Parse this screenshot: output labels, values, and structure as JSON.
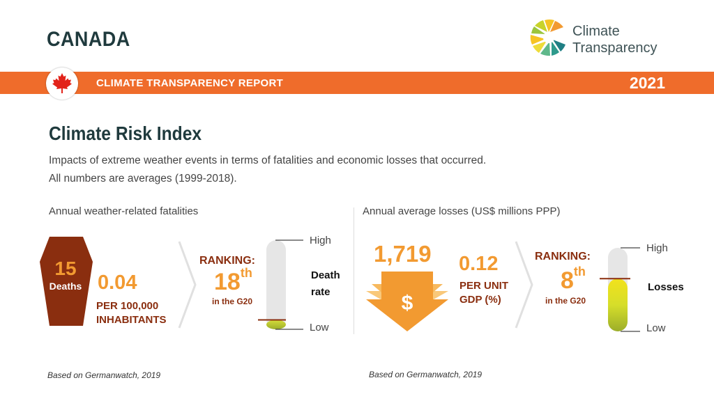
{
  "header": {
    "country": "CANADA",
    "logo_text_line1": "Climate",
    "logo_text_line2": "Transparency",
    "band_title": "CLIMATE TRANSPARENCY REPORT",
    "year": "2021",
    "colors": {
      "band": "#ef6c2b",
      "heading": "#1f3a3d",
      "accent": "#f29a31",
      "dark_red": "#8a2e0f"
    },
    "flag_icon": "canada-maple-leaf-icon"
  },
  "section": {
    "title": "Climate Risk Index",
    "desc_line1": "Impacts of extreme weather events in terms of fatalities and economic losses that occurred.",
    "desc_line2": "All numbers are averages (1999-2018)."
  },
  "fatalities": {
    "label": "Annual weather-related fatalities",
    "deaths_value": "15",
    "deaths_unit": "Deaths",
    "rate_value": "0.04",
    "rate_unit_line1": "PER 100,000",
    "rate_unit_line2": "INHABITANTS",
    "ranking_label": "RANKING:",
    "ranking_value": "18",
    "ranking_suffix": "th",
    "ranking_scope": "in the G20",
    "rank_position": 18,
    "rank_of": 20,
    "scale_high": "High",
    "scale_low": "Low",
    "metric_line1": "Death",
    "metric_line2": "rate",
    "source": "Based on Germanwatch, 2019"
  },
  "losses": {
    "label": "Annual average losses (US$ millions PPP)",
    "losses_value": "1,719",
    "dollar_icon": "$",
    "gdp_value": "0.12",
    "gdp_unit_line1": "PER UNIT",
    "gdp_unit_line2": "GDP (%)",
    "ranking_label": "RANKING:",
    "ranking_value": "8",
    "ranking_suffix": "th",
    "ranking_scope": "in the G20",
    "rank_position": 8,
    "rank_of": 20,
    "scale_high": "High",
    "scale_low": "Low",
    "metric_line1": "Losses",
    "source": "Based on Germanwatch, 2019"
  }
}
